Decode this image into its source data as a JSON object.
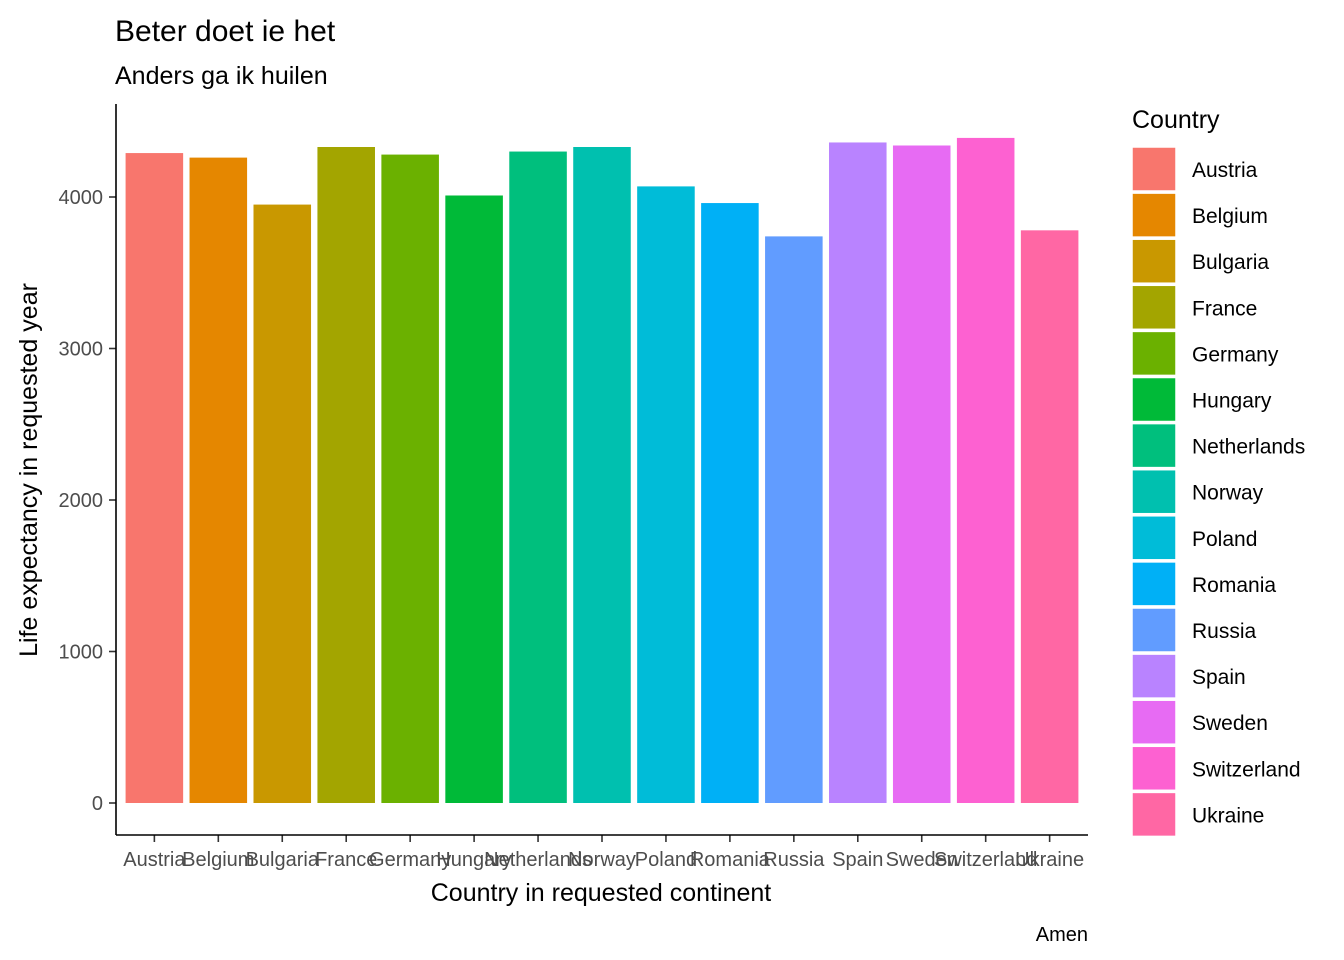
{
  "chart_data": {
    "type": "bar",
    "title": "Beter doet ie het",
    "subtitle": "Anders ga ik huilen",
    "xlabel": "Country in requested continent",
    "ylabel": "Life expectancy in requested year",
    "caption": "Amen",
    "legend_title": "Country",
    "legend_position": "right",
    "grid": false,
    "ylim": [
      0,
      4500
    ],
    "yticks": [
      0,
      1000,
      2000,
      3000,
      4000
    ],
    "categories": [
      "Austria",
      "Belgium",
      "Bulgaria",
      "France",
      "Germany",
      "Hungary",
      "Netherlands",
      "Norway",
      "Poland",
      "Romania",
      "Russia",
      "Spain",
      "Sweden",
      "Switzerland",
      "Ukraine"
    ],
    "values": [
      4290,
      4260,
      3950,
      4330,
      4280,
      4010,
      4300,
      4330,
      4070,
      3960,
      3740,
      4360,
      4340,
      4390,
      3780
    ],
    "colors": [
      "#F8766D",
      "#E58700",
      "#C99800",
      "#A3A500",
      "#6BB100",
      "#00BA38",
      "#00BF7D",
      "#00C0AF",
      "#00BCD8",
      "#00B0F6",
      "#619CFF",
      "#B983FF",
      "#E76BF3",
      "#FD61D1",
      "#FF67A4"
    ]
  }
}
